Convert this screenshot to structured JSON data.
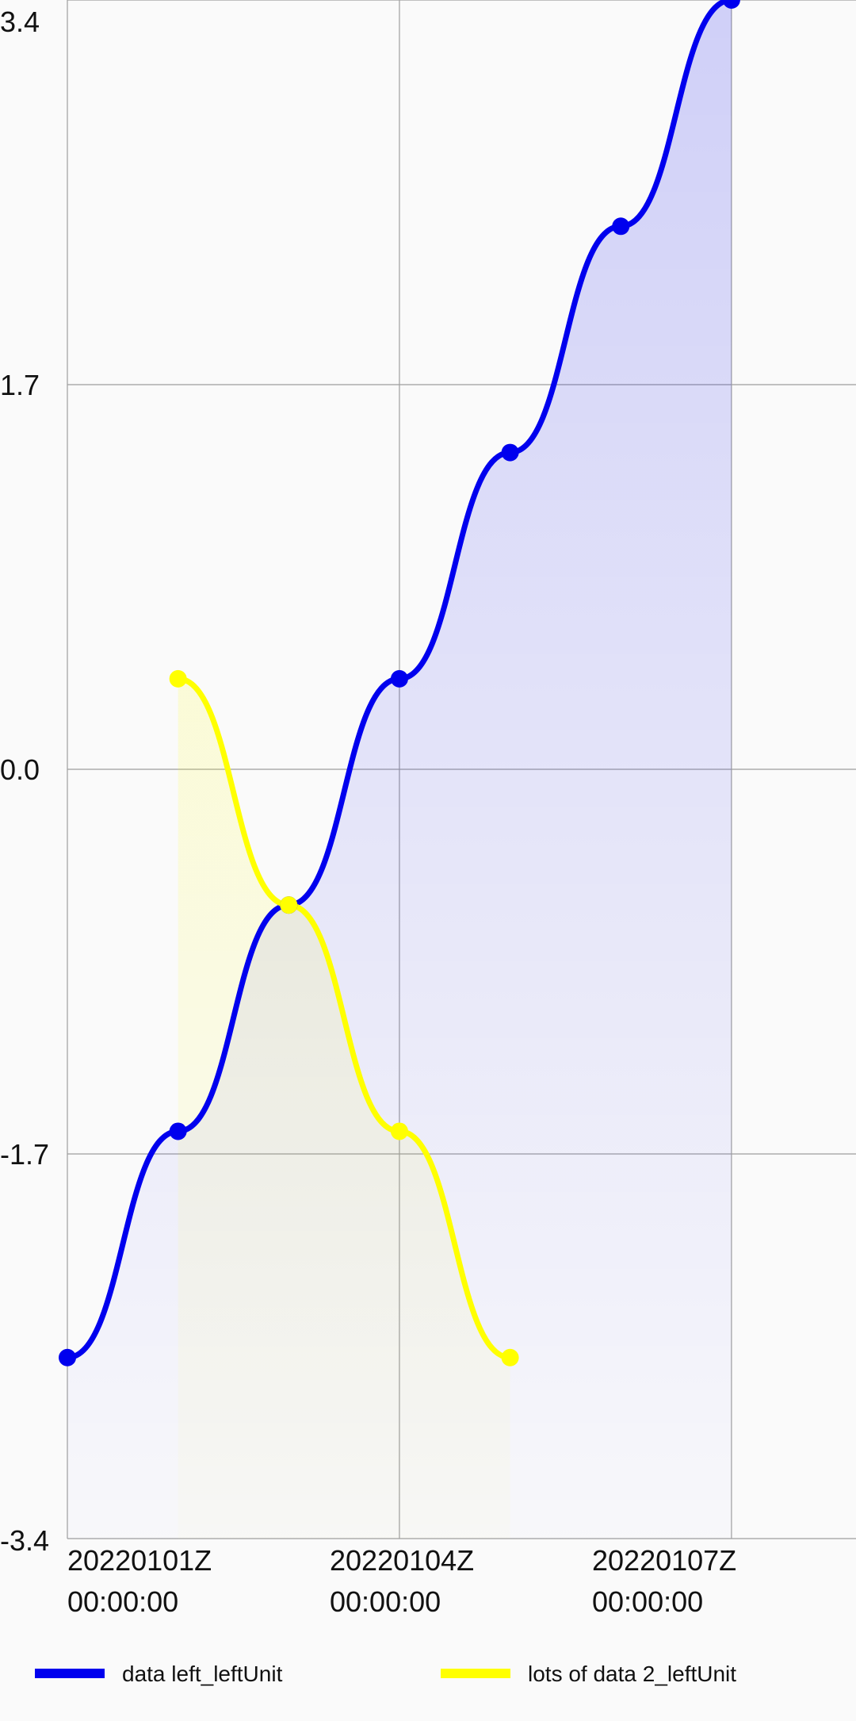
{
  "chart_data": {
    "type": "area",
    "title": "",
    "xlabel": "",
    "ylabel": "",
    "ylim": [
      -3.4,
      3.4
    ],
    "y_ticks": [
      "3.4",
      "1.7",
      "0.0",
      "-1.7",
      "-3.4"
    ],
    "y_tick_values": [
      3.4,
      1.7,
      0.0,
      -1.7,
      -3.4
    ],
    "x_ticks": [
      {
        "line1": "20220101Z",
        "line2": "00:00:00",
        "x": "2022-01-01T00:00:00Z"
      },
      {
        "line1": "20220104Z",
        "line2": "00:00:00",
        "x": "2022-01-04T00:00:00Z"
      },
      {
        "line1": "20220107Z",
        "line2": "00:00:00",
        "x": "2022-01-07T00:00:00Z"
      }
    ],
    "x_range": [
      "2022-01-01T00:00:00Z",
      "2022-01-08T03:00:00Z"
    ],
    "grid": true,
    "legend_position": "bottom",
    "series": [
      {
        "name": "data left_leftUnit",
        "color": "#0000ee",
        "points": [
          {
            "x": "2022-01-01T00:00:00Z",
            "y": -2.6
          },
          {
            "x": "2022-01-02T00:00:00Z",
            "y": -1.6
          },
          {
            "x": "2022-01-03T00:00:00Z",
            "y": -0.6
          },
          {
            "x": "2022-01-04T00:00:00Z",
            "y": 0.4
          },
          {
            "x": "2022-01-05T00:00:00Z",
            "y": 1.4
          },
          {
            "x": "2022-01-06T00:00:00Z",
            "y": 2.4
          },
          {
            "x": "2022-01-07T00:00:00Z",
            "y": 3.4
          }
        ]
      },
      {
        "name": "lots of data 2_leftUnit",
        "color": "#ffff00",
        "points": [
          {
            "x": "2022-01-02T00:00:00Z",
            "y": 0.4
          },
          {
            "x": "2022-01-03T00:00:00Z",
            "y": -0.6
          },
          {
            "x": "2022-01-04T00:00:00Z",
            "y": -1.6
          },
          {
            "x": "2022-01-05T00:00:00Z",
            "y": -2.6
          }
        ]
      }
    ]
  }
}
